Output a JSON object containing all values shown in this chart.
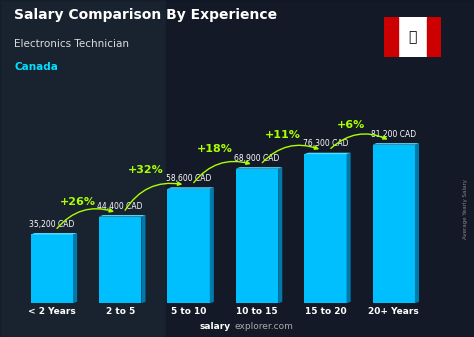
{
  "categories": [
    "< 2 Years",
    "2 to 5",
    "5 to 10",
    "10 to 15",
    "15 to 20",
    "20+ Years"
  ],
  "values": [
    35200,
    44400,
    58600,
    68900,
    76300,
    81200
  ],
  "salary_labels": [
    "35,200 CAD",
    "44,400 CAD",
    "58,600 CAD",
    "68,900 CAD",
    "76,300 CAD",
    "81,200 CAD"
  ],
  "pct_labels": [
    "+26%",
    "+32%",
    "+18%",
    "+11%",
    "+6%"
  ],
  "bar_color": "#00bfff",
  "bar_color_light": "#55ddff",
  "bar_color_dark": "#007aaa",
  "title": "Salary Comparison By Experience",
  "subtitle": "Electronics Technician",
  "country": "Canada",
  "footer": "salaryexplorer.com",
  "footer_bold": "salary",
  "ylabel": "Average Yearly Salary",
  "title_color": "#ffffff",
  "subtitle_color": "#dddddd",
  "country_color": "#00e0ff",
  "salary_label_color": "#ffffff",
  "pct_color": "#aaff00",
  "footer_color": "#cccccc",
  "bg_dark": "#1a1a2e",
  "ylim": [
    0,
    100000
  ],
  "label_offset_above": [
    3000,
    3000,
    3000,
    3000,
    3000,
    3000
  ],
  "pct_positions_x": [
    0.5,
    1.5,
    2.5,
    3.5,
    4.5
  ],
  "pct_arc_heights": [
    52000,
    68000,
    79000,
    86000,
    91000
  ]
}
